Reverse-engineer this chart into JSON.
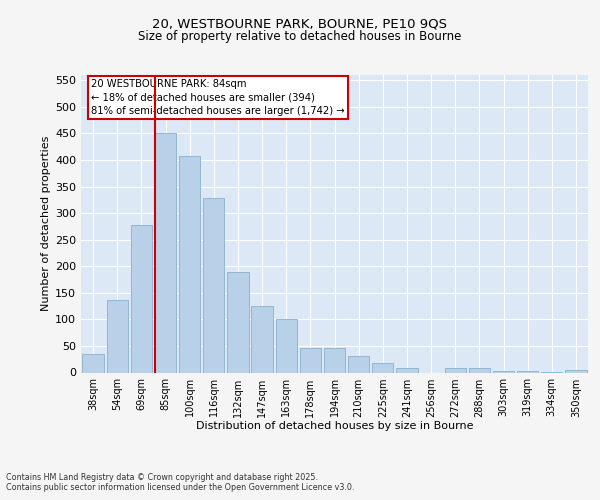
{
  "title1": "20, WESTBOURNE PARK, BOURNE, PE10 9QS",
  "title2": "Size of property relative to detached houses in Bourne",
  "xlabel": "Distribution of detached houses by size in Bourne",
  "ylabel": "Number of detached properties",
  "categories": [
    "38sqm",
    "54sqm",
    "69sqm",
    "85sqm",
    "100sqm",
    "116sqm",
    "132sqm",
    "147sqm",
    "163sqm",
    "178sqm",
    "194sqm",
    "210sqm",
    "225sqm",
    "241sqm",
    "256sqm",
    "272sqm",
    "288sqm",
    "303sqm",
    "319sqm",
    "334sqm",
    "350sqm"
  ],
  "values": [
    35,
    137,
    277,
    450,
    408,
    328,
    190,
    125,
    101,
    47,
    47,
    31,
    17,
    8,
    0,
    9,
    9,
    3,
    2,
    1,
    4
  ],
  "bar_color": "#b8d0e8",
  "bar_edge_color": "#8ab0cc",
  "vline_index": 3,
  "vline_color": "#cc0000",
  "annotation_text": "20 WESTBOURNE PARK: 84sqm\n← 18% of detached houses are smaller (394)\n81% of semi-detached houses are larger (1,742) →",
  "annotation_box_color": "#cc0000",
  "ylim": [
    0,
    560
  ],
  "yticks": [
    0,
    50,
    100,
    150,
    200,
    250,
    300,
    350,
    400,
    450,
    500,
    550
  ],
  "bg_color": "#dce8f5",
  "grid_color": "#ffffff",
  "fig_bg_color": "#f5f5f5",
  "footer_line1": "Contains HM Land Registry data © Crown copyright and database right 2025.",
  "footer_line2": "Contains public sector information licensed under the Open Government Licence v3.0."
}
